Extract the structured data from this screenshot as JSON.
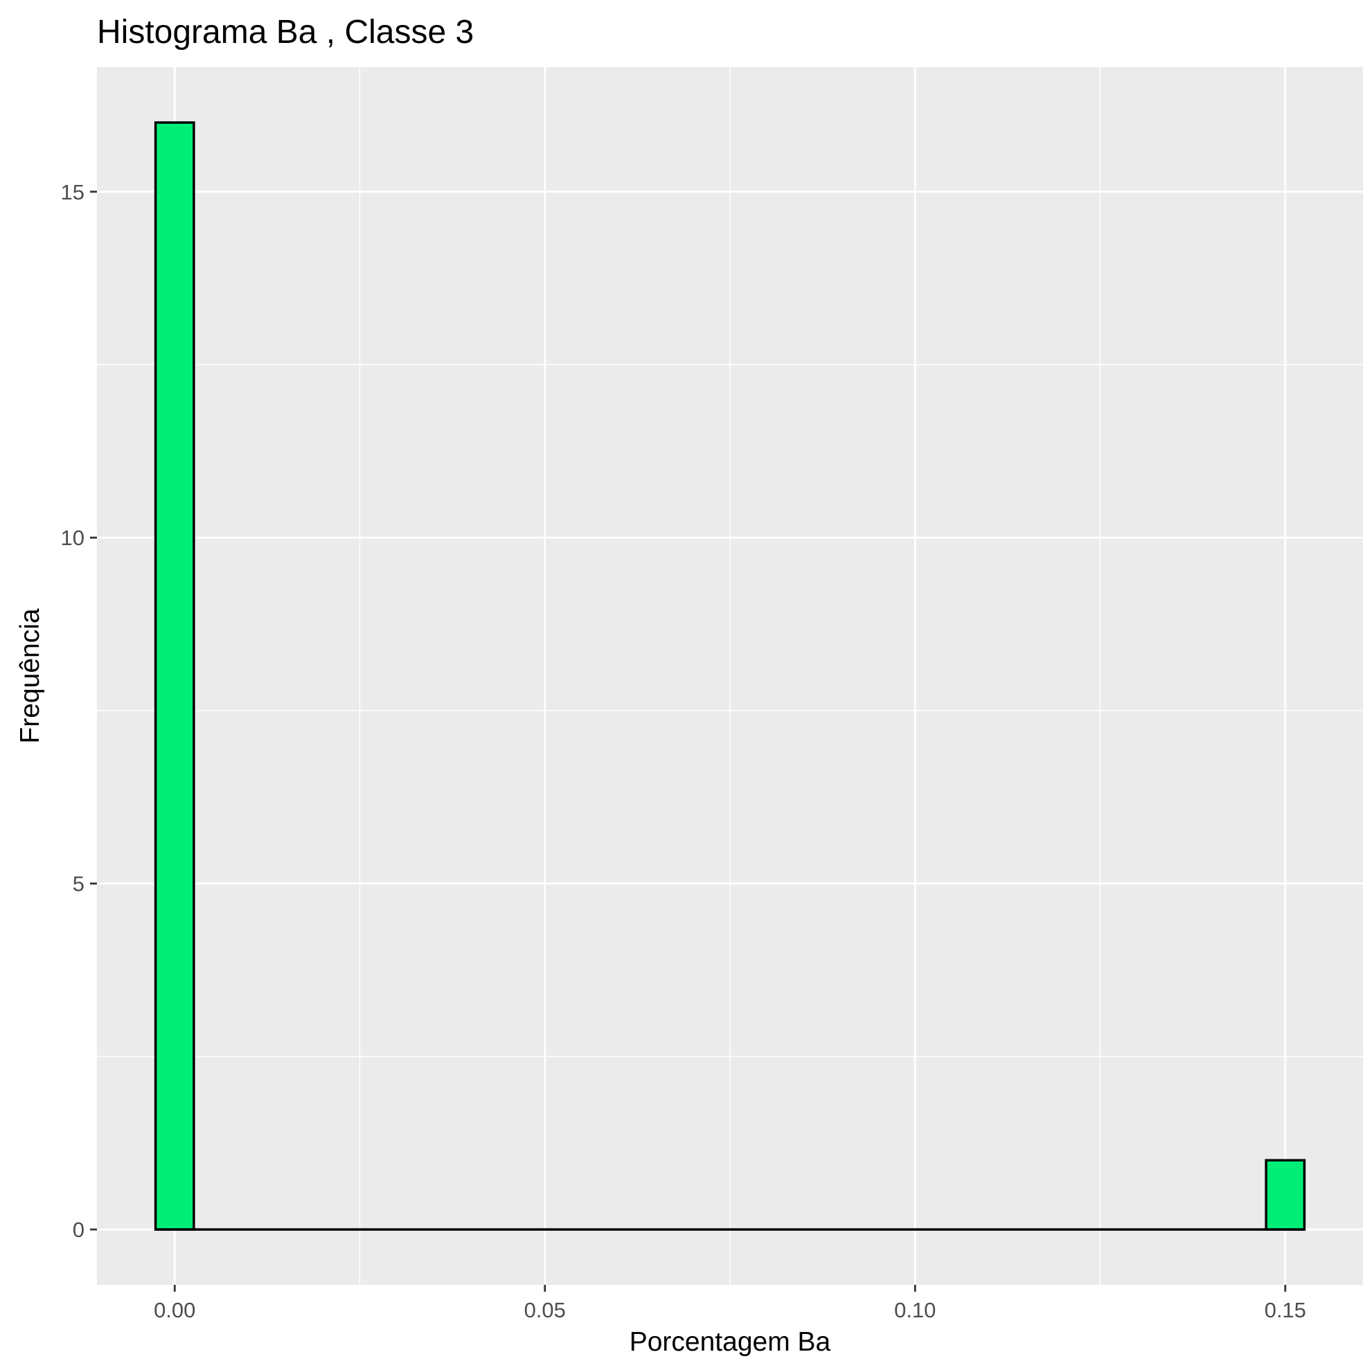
{
  "chart_data": {
    "type": "bar",
    "title": "Histograma  Ba , Classe  3",
    "xlabel": "Porcentagem Ba",
    "ylabel": "Frequência",
    "xlim": [
      -0.0105,
      0.1605
    ],
    "ylim": [
      -0.8,
      16.8
    ],
    "x_ticks": [
      0.0,
      0.05,
      0.1,
      0.15
    ],
    "x_tick_labels": [
      "0.00",
      "0.05",
      "0.10",
      "0.15"
    ],
    "y_ticks": [
      0,
      5,
      10,
      15
    ],
    "y_tick_labels": [
      "0",
      "5",
      "10",
      "15"
    ],
    "bin_width": 0.00517,
    "bins": [
      {
        "center": 0.0,
        "count": 16
      },
      {
        "center": 0.15,
        "count": 1
      }
    ],
    "grid": true,
    "legend": "none",
    "colors": {
      "bar_fill": "#00EE76",
      "bar_stroke": "#000000",
      "panel_bg": "#EBEBEB",
      "grid": "#FFFFFF",
      "tick_text": "#4D4D4D"
    }
  }
}
